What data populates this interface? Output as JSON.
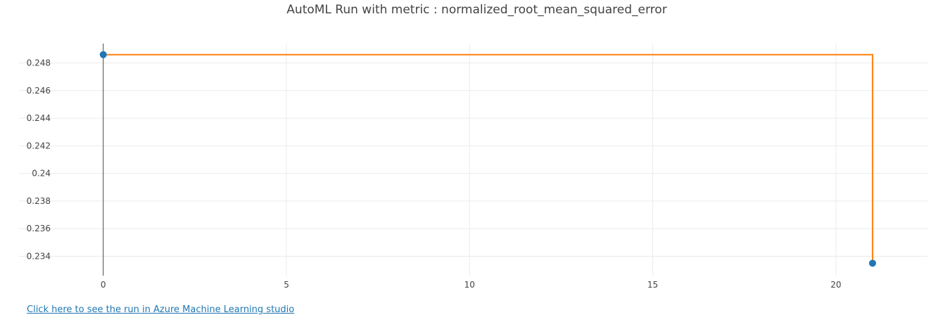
{
  "chart_data": {
    "type": "line",
    "title": "AutoML Run with metric : normalized_root_mean_squared_error",
    "xlabel": "",
    "ylabel": "",
    "xlim": [
      -2.3,
      22.5
    ],
    "ylim": [
      0.2326,
      0.2494
    ],
    "x_ticks": [
      0,
      5,
      10,
      15,
      20
    ],
    "y_ticks": [
      0.234,
      0.236,
      0.238,
      0.24,
      0.242,
      0.244,
      0.246,
      0.248
    ],
    "y_tick_labels": [
      "0.234",
      "0.236",
      "0.238",
      "0.24",
      "0.242",
      "0.244",
      "0.246",
      "0.248"
    ],
    "grid": true,
    "series": [
      {
        "kind": "scatter",
        "color": "#1f77b4",
        "points": [
          {
            "x": 0,
            "y": 0.2486
          },
          {
            "x": 21,
            "y": 0.2335
          }
        ]
      },
      {
        "kind": "step-line",
        "color": "#ff7f0e",
        "points": [
          {
            "x": 0,
            "y": 0.2486
          },
          {
            "x": 21,
            "y": 0.2486
          },
          {
            "x": 21,
            "y": 0.2335
          }
        ]
      }
    ]
  },
  "link": {
    "text": "Click here to see the run in Azure Machine Learning studio"
  }
}
